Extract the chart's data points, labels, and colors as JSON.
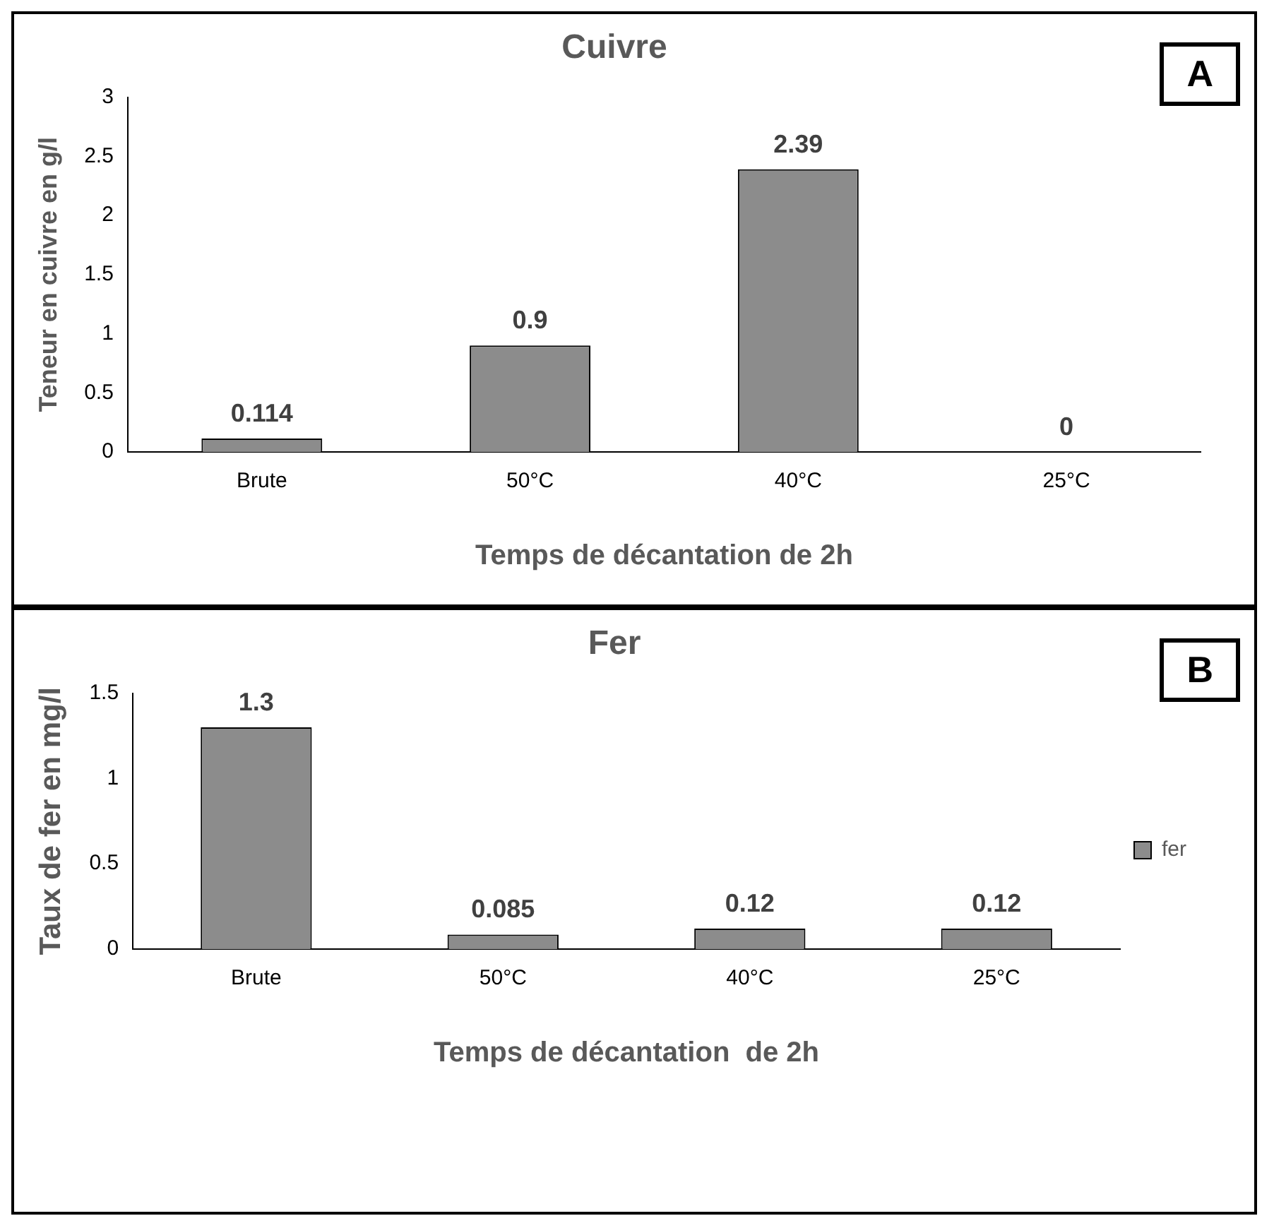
{
  "chart_data": [
    {
      "type": "bar",
      "title": "Cuivre",
      "xlabel": "Temps de décantation de 2h",
      "ylabel": "Teneur en cuivre en g/l",
      "categories": [
        "Brute",
        "50°C",
        "40°C",
        "25°C"
      ],
      "series": [
        {
          "color": "#8c8c8c",
          "values": [
            0.114,
            0.9,
            2.39,
            0
          ]
        }
      ],
      "ylim": [
        0,
        3
      ],
      "yticks": [
        0,
        0.5,
        1,
        1.5,
        2,
        2.5,
        3
      ],
      "grid": false,
      "legend": false,
      "data_labels": true,
      "annotations": [
        "A"
      ]
    },
    {
      "type": "bar",
      "title": "Fer",
      "xlabel": "Temps de décantation  de 2h",
      "ylabel": "Taux de fer en mg/l",
      "categories": [
        "Brute",
        "50°C",
        "40°C",
        "25°C"
      ],
      "series": [
        {
          "name": "fer",
          "color": "#8c8c8c",
          "values": [
            1.3,
            0.085,
            0.12,
            0.12
          ]
        }
      ],
      "ylim": [
        0,
        1.5
      ],
      "yticks": [
        0,
        0.5,
        1,
        1.5
      ],
      "grid": false,
      "legend": "right",
      "data_labels": true,
      "annotations": [
        "B"
      ]
    }
  ]
}
